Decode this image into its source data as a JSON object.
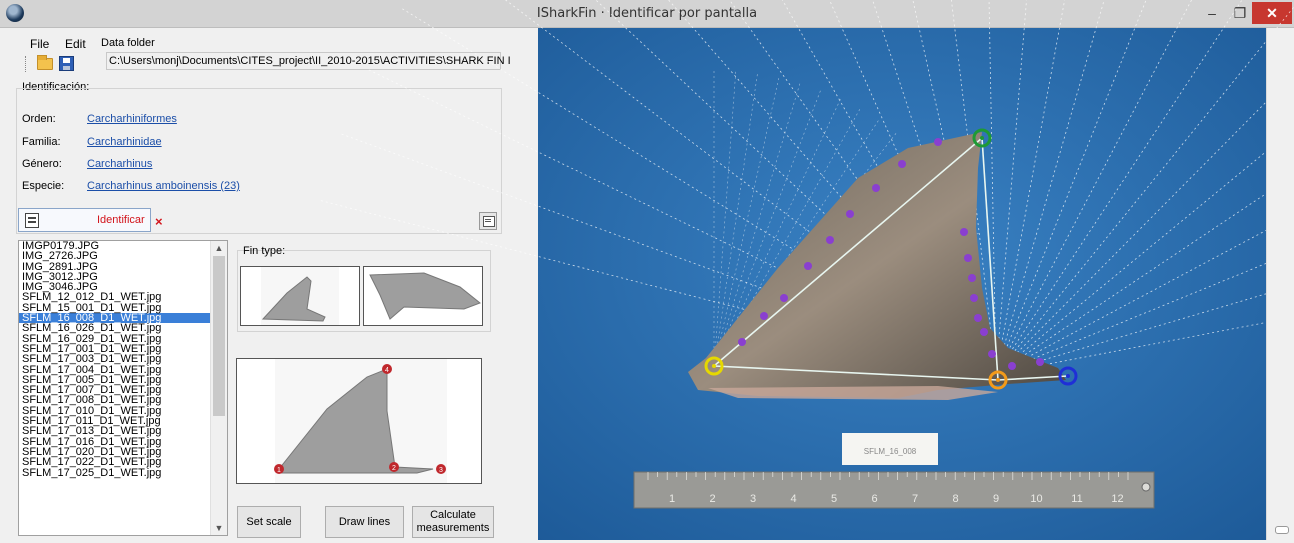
{
  "window": {
    "title": "ISharkFin · Identificar por pantalla"
  },
  "menu": {
    "file": "File",
    "edit": "Edit"
  },
  "data_folder": {
    "label": "Data folder",
    "path": "C:\\Users\\monj\\Documents\\CITES_project\\II_2010-2015\\ACTIVITIES\\SHARK FIN I"
  },
  "identificacion": {
    "label": "Identificación:",
    "orden_label": "Orden:",
    "orden": "Carcharhiniformes",
    "familia_label": "Familia:",
    "familia": "Carcharhinidae",
    "genero_label": "Género:",
    "genero": "Carcharhinus",
    "especie_label": "Especie:",
    "especie": "Carcharhinus amboinensis (23)"
  },
  "identify_button": "Identificar",
  "clear_button": "×",
  "files": [
    "IMGP0179.JPG",
    "IMG_2726.JPG",
    "IMG_2891.JPG",
    "IMG_3012.JPG",
    "IMG_3046.JPG",
    "SFLM_12_012_D1_WET.jpg",
    "SFLM_15_001_D1_WET.jpg",
    "SFLM_16_008_D1_WET.jpg",
    "SFLM_16_026_D1_WET.jpg",
    "SFLM_16_029_D1_WET.jpg",
    "SFLM_17_001_D1_WET.jpg",
    "SFLM_17_003_D1_WET.jpg",
    "SFLM_17_004_D1_WET.jpg",
    "SFLM_17_005_D1_WET.jpg",
    "SFLM_17_007_D1_WET.jpg",
    "SFLM_17_008_D1_WET.jpg",
    "SFLM_17_010_D1_WET.jpg",
    "SFLM_17_011_D1_WET.jpg",
    "SFLM_17_013_D1_WET.jpg",
    "SFLM_17_016_D1_WET.jpg",
    "SFLM_17_020_D1_WET.jpg",
    "SFLM_17_022_D1_WET.jpg",
    "SFLM_17_025_D1_WET.jpg"
  ],
  "selected_file": "SFLM_16_008_D1_WET.jpg",
  "fin_type": {
    "label": "Fin type:"
  },
  "landmarks": [
    "1",
    "2",
    "3",
    "4"
  ],
  "buttons": {
    "set_scale": "Set scale",
    "draw_lines": "Draw lines",
    "calculate_line1": "Calculate",
    "calculate_line2": "measurements"
  },
  "photo": {
    "sample_label": "SFLM_16_008",
    "ruler_marks": [
      "1",
      "2",
      "3",
      "4",
      "5",
      "6",
      "7",
      "8",
      "9",
      "10",
      "11",
      "12"
    ],
    "colors": {
      "background": "#2a6fb4",
      "point": "#8a3fd0",
      "lm1": "#e6d800",
      "lm2": "#f29a1a",
      "lm3": "#1f2fd6",
      "lm4": "#1e9a35"
    }
  }
}
